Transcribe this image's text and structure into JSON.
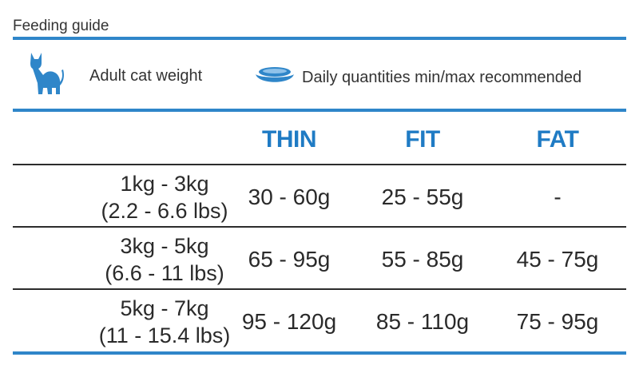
{
  "title": "Feeding guide",
  "header": {
    "cat_icon": "cat-icon",
    "weight_label": "Adult cat weight",
    "bowl_icon": "bowl-icon",
    "quantity_label": "Daily quantities min/max recommended"
  },
  "columns": [
    "THIN",
    "FIT",
    "FAT"
  ],
  "rows": [
    {
      "weight_kg": "1kg - 3kg",
      "weight_lbs": "(2.2 - 6.6 lbs)",
      "values": [
        "30 - 60g",
        "25 - 55g",
        "-"
      ]
    },
    {
      "weight_kg": "3kg - 5kg",
      "weight_lbs": "(6.6 - 11 lbs)",
      "values": [
        "65 - 95g",
        "55 - 85g",
        "45 - 75g"
      ]
    },
    {
      "weight_kg": "5kg - 7kg",
      "weight_lbs": "(11 - 15.4 lbs)",
      "values": [
        "95 - 120g",
        "85 - 110g",
        "75 - 95g"
      ]
    }
  ],
  "colors": {
    "accent": "#2f86c9",
    "heading": "#1f7bc4",
    "text": "#2a2a2a"
  }
}
